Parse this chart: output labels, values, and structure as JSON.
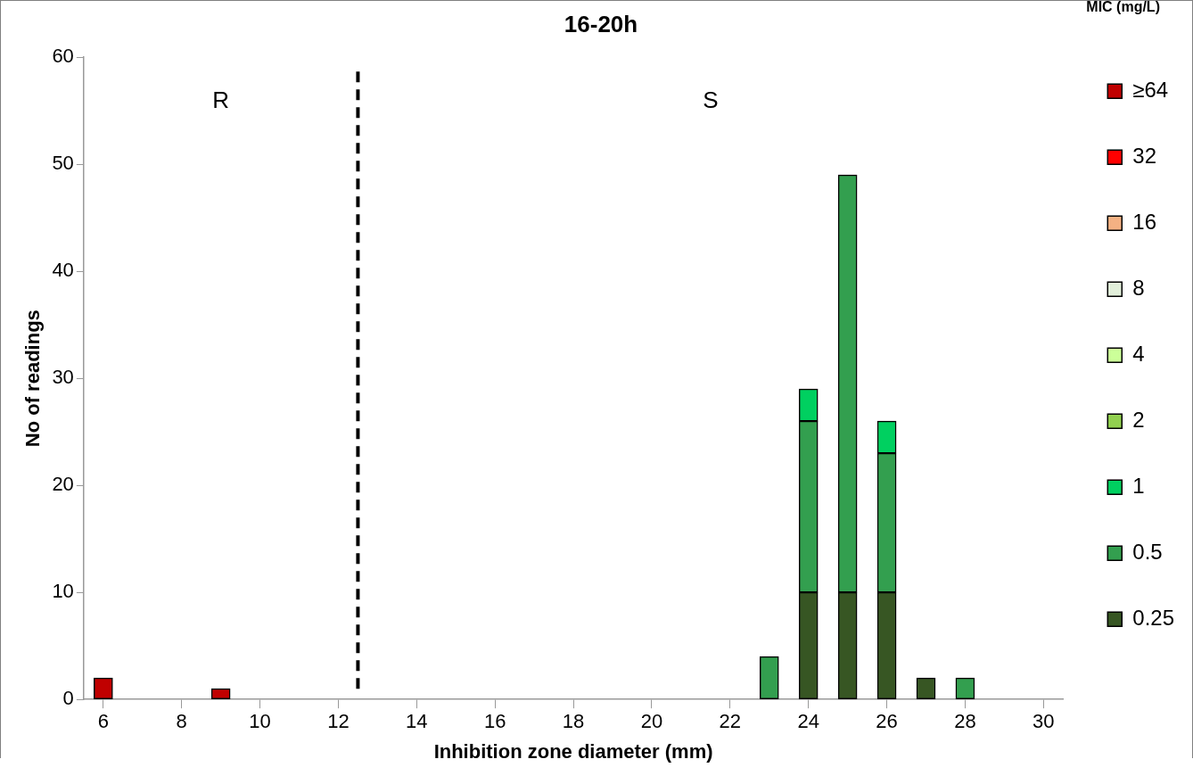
{
  "chart_data": {
    "type": "bar",
    "title": "16-20h",
    "xlabel": "Inhibition zone diameter (mm)",
    "ylabel": "No of readings",
    "legend_title": "MIC (mg/L)",
    "legend": "right",
    "stacked": true,
    "x": [
      6,
      7,
      8,
      9,
      10,
      11,
      12,
      13,
      14,
      15,
      16,
      17,
      18,
      19,
      20,
      21,
      22,
      23,
      24,
      25,
      26,
      27,
      28
    ],
    "xlim": [
      5.5,
      30.5
    ],
    "xticks": [
      6,
      8,
      10,
      12,
      14,
      16,
      18,
      20,
      22,
      24,
      26,
      28,
      30
    ],
    "ylim": [
      0,
      60
    ],
    "yticks": [
      0,
      10,
      20,
      30,
      40,
      50,
      60
    ],
    "grid": false,
    "series": [
      {
        "name": "0.25",
        "color": "#375623",
        "values": [
          null,
          null,
          null,
          null,
          null,
          null,
          null,
          null,
          null,
          null,
          null,
          null,
          null,
          null,
          null,
          null,
          null,
          null,
          10,
          10,
          10,
          2,
          null
        ]
      },
      {
        "name": "0.5",
        "color": "#339f4f",
        "values": [
          null,
          null,
          null,
          null,
          null,
          null,
          null,
          null,
          null,
          null,
          null,
          null,
          null,
          null,
          null,
          null,
          null,
          4,
          16,
          39,
          13,
          null,
          2
        ]
      },
      {
        "name": "1",
        "color": "#00d060",
        "values": [
          null,
          null,
          null,
          null,
          null,
          null,
          null,
          null,
          null,
          null,
          null,
          null,
          null,
          null,
          null,
          null,
          null,
          null,
          3,
          null,
          3,
          null,
          null
        ]
      },
      {
        "name": "2",
        "color": "#92d050",
        "values": [
          null,
          null,
          null,
          null,
          null,
          null,
          null,
          null,
          null,
          null,
          null,
          null,
          null,
          null,
          null,
          null,
          null,
          null,
          null,
          null,
          null,
          null,
          null
        ]
      },
      {
        "name": "4",
        "color": "#ccff99",
        "values": [
          null,
          null,
          null,
          null,
          null,
          null,
          null,
          null,
          null,
          null,
          null,
          null,
          null,
          null,
          null,
          null,
          null,
          null,
          null,
          null,
          null,
          null,
          null
        ]
      },
      {
        "name": "8",
        "color": "#e2efda",
        "values": [
          null,
          null,
          null,
          null,
          null,
          null,
          null,
          null,
          null,
          null,
          null,
          null,
          null,
          null,
          null,
          null,
          null,
          null,
          null,
          null,
          null,
          null,
          null
        ]
      },
      {
        "name": "16",
        "color": "#f4b183",
        "values": [
          null,
          null,
          null,
          null,
          null,
          null,
          null,
          null,
          null,
          null,
          null,
          null,
          null,
          null,
          null,
          null,
          null,
          null,
          null,
          null,
          null,
          null,
          null
        ]
      },
      {
        "name": "32",
        "color": "#ff0000",
        "values": [
          null,
          null,
          null,
          null,
          null,
          null,
          null,
          null,
          null,
          null,
          null,
          null,
          null,
          null,
          null,
          null,
          null,
          null,
          null,
          null,
          null,
          null,
          null
        ]
      },
      {
        "name": "≥64",
        "color": "#c00000",
        "values": [
          2,
          null,
          null,
          1,
          null,
          null,
          null,
          null,
          null,
          null,
          null,
          null,
          null,
          null,
          null,
          null,
          null,
          null,
          null,
          null,
          null,
          null,
          null
        ]
      }
    ],
    "ref_lines": [
      {
        "axis": "x",
        "value": 12.5,
        "color": "#000000",
        "line_style": "dashed"
      }
    ],
    "annotations": [
      "R",
      "S"
    ]
  }
}
